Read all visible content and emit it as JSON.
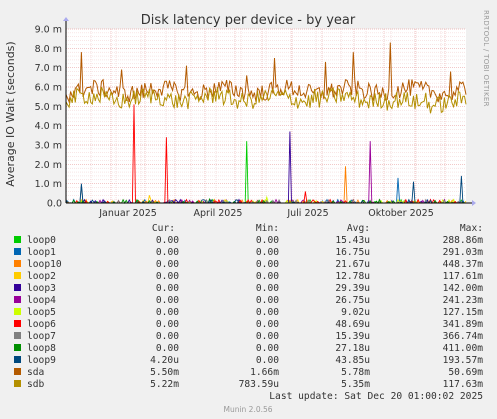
{
  "chart_data": {
    "type": "line",
    "title": "Disk latency per device - by year",
    "ylabel": "Average IO Wait (seconds)",
    "side_text": "RRDTOOL / TOBI OETIKER",
    "y_ticks": [
      "0.0",
      "1.0 m",
      "2.0 m",
      "3.0 m",
      "4.0 m",
      "5.0 m",
      "6.0 m",
      "7.0 m",
      "8.0 m",
      "9.0 m"
    ],
    "ylim": [
      0,
      0.009
    ],
    "x_tick_labels": [
      "Januar 2025",
      "April 2025",
      "Juli 2025",
      "Oktober 2025"
    ],
    "legend_headers": {
      "cur": "Cur:",
      "min": "Min:",
      "avg": "Avg:",
      "max": "Max:"
    },
    "series": [
      {
        "name": "loop0",
        "color": "#00cc00",
        "cur": "0.00",
        "min": "0.00",
        "avg": "15.43u",
        "max": "288.86m",
        "peaks": [
          [
            0.45,
            0.0032
          ]
        ]
      },
      {
        "name": "loop1",
        "color": "#0066b3",
        "cur": "0.00",
        "min": "0.00",
        "avg": "16.75u",
        "max": "291.03m",
        "peaks": [
          [
            0.83,
            0.0013
          ]
        ]
      },
      {
        "name": "loop10",
        "color": "#ff8000",
        "cur": "0.00",
        "min": "0.00",
        "avg": "21.67u",
        "max": "448.37m",
        "peaks": [
          [
            0.7,
            0.0019
          ]
        ]
      },
      {
        "name": "loop2",
        "color": "#ffcc00",
        "cur": "0.00",
        "min": "0.00",
        "avg": "12.78u",
        "max": "117.61m",
        "peaks": [
          [
            0.21,
            0.0004
          ]
        ]
      },
      {
        "name": "loop3",
        "color": "#330099",
        "cur": "0.00",
        "min": "0.00",
        "avg": "29.39u",
        "max": "142.00m",
        "peaks": [
          [
            0.56,
            0.0037
          ]
        ]
      },
      {
        "name": "loop4",
        "color": "#990099",
        "cur": "0.00",
        "min": "0.00",
        "avg": "26.75u",
        "max": "241.23m",
        "peaks": [
          [
            0.76,
            0.0032
          ]
        ]
      },
      {
        "name": "loop5",
        "color": "#ccff00",
        "cur": "0.00",
        "min": "0.00",
        "avg": "9.02u",
        "max": "127.15m",
        "peaks": [
          [
            0.5,
            0.0003
          ]
        ]
      },
      {
        "name": "loop6",
        "color": "#ff0000",
        "cur": "0.00",
        "min": "0.00",
        "avg": "48.69u",
        "max": "341.89m",
        "peaks": [
          [
            0.17,
            0.0051
          ],
          [
            0.25,
            0.0034
          ],
          [
            0.6,
            0.0006
          ]
        ]
      },
      {
        "name": "loop7",
        "color": "#808080",
        "cur": "0.00",
        "min": "0.00",
        "avg": "15.39u",
        "max": "366.74m",
        "peaks": [
          [
            0.04,
            0.0009
          ]
        ]
      },
      {
        "name": "loop8",
        "color": "#008f00",
        "cur": "0.00",
        "min": "0.00",
        "avg": "27.18u",
        "max": "411.00m",
        "peaks": [
          [
            0.36,
            0.0002
          ]
        ]
      },
      {
        "name": "loop9",
        "color": "#00487d",
        "cur": "4.20u",
        "min": "0.00",
        "avg": "43.85u",
        "max": "193.57m",
        "peaks": [
          [
            0.04,
            0.001
          ],
          [
            0.87,
            0.0011
          ],
          [
            0.99,
            0.0014
          ]
        ]
      },
      {
        "name": "sda",
        "color": "#b35a00",
        "cur": "5.50m",
        "min": "1.66m",
        "avg": "5.78m",
        "max": "50.69m",
        "baseline": 0.0058,
        "peaks": [
          [
            0.04,
            0.0078
          ],
          [
            0.14,
            0.0069
          ],
          [
            0.3,
            0.0071
          ],
          [
            0.45,
            0.0066
          ],
          [
            0.52,
            0.0075
          ],
          [
            0.65,
            0.0073
          ],
          [
            0.72,
            0.0078
          ],
          [
            0.81,
            0.0083
          ],
          [
            0.96,
            0.0068
          ]
        ]
      },
      {
        "name": "sdb",
        "color": "#b38f00",
        "cur": "5.22m",
        "min": "783.59u",
        "avg": "5.35m",
        "max": "117.63m",
        "baseline": 0.0054,
        "peaks": [
          [
            0.09,
            0.006
          ],
          [
            0.38,
            0.006
          ],
          [
            0.62,
            0.0059
          ],
          [
            0.9,
            0.0057
          ]
        ]
      }
    ]
  },
  "last_update": "Last update: Sat Dec 20 01:00:02 2025",
  "footer": "Munin 2.0.56"
}
